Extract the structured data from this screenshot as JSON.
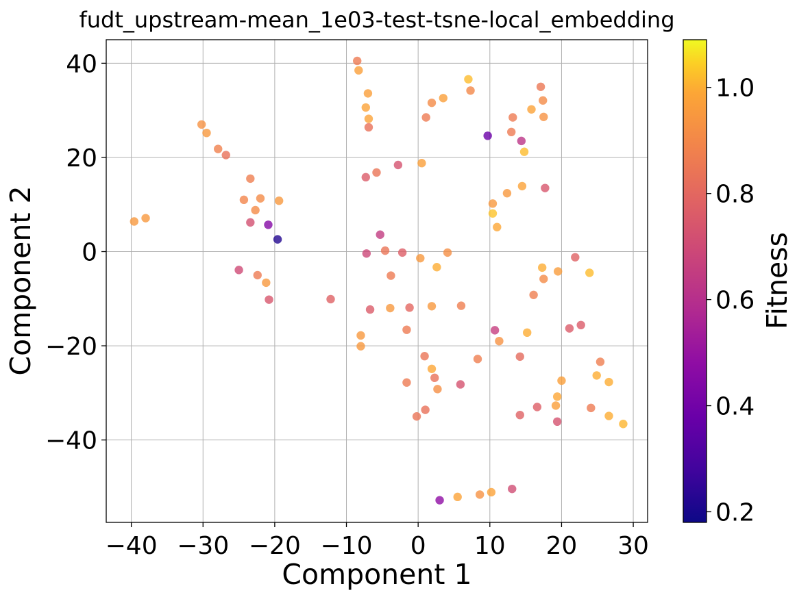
{
  "chart_data": {
    "type": "scatter",
    "title": "fudt_upstream-mean_1e03-test-tsne-local_embedding",
    "xlabel": "Component 1",
    "ylabel": "Component 2",
    "xlim": [
      -43.5,
      32
    ],
    "ylim": [
      -57.5,
      45
    ],
    "xticks": [
      -40,
      -30,
      -20,
      -10,
      0,
      10,
      20,
      30
    ],
    "xtick_labels": [
      "−40",
      "−30",
      "−20",
      "−10",
      "0",
      "10",
      "20",
      "30"
    ],
    "yticks": [
      -40,
      -20,
      0,
      20,
      40
    ],
    "ytick_labels": [
      "−40",
      "−20",
      "0",
      "20",
      "40"
    ],
    "grid": true,
    "colorbar": {
      "label": "Fitness",
      "colormap": "plasma",
      "range": [
        0.18,
        1.09
      ],
      "ticks": [
        0.2,
        0.4,
        0.6,
        0.8,
        1.0
      ],
      "tick_labels": [
        "0.2",
        "0.4",
        "0.6",
        "0.8",
        "1.0"
      ]
    },
    "points": [
      {
        "x": -39.6,
        "y": 6.4,
        "c": 0.95
      },
      {
        "x": -38.0,
        "y": 7.1,
        "c": 0.95
      },
      {
        "x": -30.2,
        "y": 27.0,
        "c": 0.93
      },
      {
        "x": -29.5,
        "y": 25.2,
        "c": 0.95
      },
      {
        "x": -27.9,
        "y": 21.8,
        "c": 0.88
      },
      {
        "x": -26.8,
        "y": 20.5,
        "c": 0.83
      },
      {
        "x": -23.4,
        "y": 15.5,
        "c": 0.87
      },
      {
        "x": -24.3,
        "y": 11.0,
        "c": 0.89
      },
      {
        "x": -22.0,
        "y": 11.3,
        "c": 0.91
      },
      {
        "x": -22.7,
        "y": 8.8,
        "c": 0.91
      },
      {
        "x": -19.4,
        "y": 10.8,
        "c": 0.95
      },
      {
        "x": -23.4,
        "y": 6.2,
        "c": 0.72
      },
      {
        "x": -20.9,
        "y": 5.7,
        "c": 0.45
      },
      {
        "x": -19.6,
        "y": 2.6,
        "c": 0.22
      },
      {
        "x": -25.0,
        "y": -3.9,
        "c": 0.7
      },
      {
        "x": -22.4,
        "y": -5.0,
        "c": 0.86
      },
      {
        "x": -21.2,
        "y": -6.6,
        "c": 0.95
      },
      {
        "x": -20.8,
        "y": -10.2,
        "c": 0.74
      },
      {
        "x": -12.2,
        "y": -10.1,
        "c": 0.78
      },
      {
        "x": -8.5,
        "y": 40.5,
        "c": 0.86
      },
      {
        "x": -8.3,
        "y": 38.5,
        "c": 0.97
      },
      {
        "x": -7.0,
        "y": 33.6,
        "c": 0.97
      },
      {
        "x": -7.3,
        "y": 30.6,
        "c": 0.98
      },
      {
        "x": -6.9,
        "y": 28.2,
        "c": 0.98
      },
      {
        "x": -6.9,
        "y": 26.4,
        "c": 0.83
      },
      {
        "x": -5.8,
        "y": 16.8,
        "c": 0.84
      },
      {
        "x": -7.3,
        "y": 15.8,
        "c": 0.76
      },
      {
        "x": -2.8,
        "y": 18.4,
        "c": 0.73
      },
      {
        "x": -5.3,
        "y": 3.6,
        "c": 0.65
      },
      {
        "x": -7.2,
        "y": -0.4,
        "c": 0.69
      },
      {
        "x": -4.6,
        "y": 0.2,
        "c": 0.84
      },
      {
        "x": -2.2,
        "y": -0.2,
        "c": 0.77
      },
      {
        "x": -3.8,
        "y": -5.1,
        "c": 0.86
      },
      {
        "x": -6.7,
        "y": -12.3,
        "c": 0.76
      },
      {
        "x": -3.9,
        "y": -12.0,
        "c": 0.95
      },
      {
        "x": -1.2,
        "y": -11.9,
        "c": 0.8
      },
      {
        "x": -8.0,
        "y": -17.8,
        "c": 0.95
      },
      {
        "x": -8.0,
        "y": -20.1,
        "c": 0.95
      },
      {
        "x": -1.6,
        "y": -16.6,
        "c": 0.86
      },
      {
        "x": -1.6,
        "y": -27.8,
        "c": 0.86
      },
      {
        "x": -0.2,
        "y": -35.0,
        "c": 0.84
      },
      {
        "x": 1.0,
        "y": -33.6,
        "c": 0.83
      },
      {
        "x": 0.9,
        "y": -22.2,
        "c": 0.84
      },
      {
        "x": 1.9,
        "y": -24.9,
        "c": 0.99
      },
      {
        "x": 2.3,
        "y": -26.8,
        "c": 0.83
      },
      {
        "x": 2.7,
        "y": -29.2,
        "c": 0.92
      },
      {
        "x": 1.9,
        "y": -11.6,
        "c": 0.95
      },
      {
        "x": 6.0,
        "y": -11.5,
        "c": 0.87
      },
      {
        "x": 5.9,
        "y": -28.2,
        "c": 0.73
      },
      {
        "x": 8.3,
        "y": -22.8,
        "c": 0.87
      },
      {
        "x": 0.3,
        "y": -1.4,
        "c": 0.95
      },
      {
        "x": 2.6,
        "y": -3.3,
        "c": 1.0
      },
      {
        "x": 4.1,
        "y": -0.2,
        "c": 0.92
      },
      {
        "x": 0.5,
        "y": 18.8,
        "c": 0.97
      },
      {
        "x": 1.1,
        "y": 28.5,
        "c": 0.86
      },
      {
        "x": 1.9,
        "y": 31.6,
        "c": 0.91
      },
      {
        "x": 3.5,
        "y": 32.6,
        "c": 0.97
      },
      {
        "x": 7.0,
        "y": 36.6,
        "c": 1.02
      },
      {
        "x": 7.3,
        "y": 34.2,
        "c": 0.9
      },
      {
        "x": 9.7,
        "y": 24.6,
        "c": 0.38
      },
      {
        "x": 10.4,
        "y": 10.2,
        "c": 0.95
      },
      {
        "x": 10.4,
        "y": 8.1,
        "c": 1.03
      },
      {
        "x": 11.0,
        "y": 5.2,
        "c": 0.99
      },
      {
        "x": 12.4,
        "y": 12.4,
        "c": 0.95
      },
      {
        "x": 13.0,
        "y": 25.4,
        "c": 0.86
      },
      {
        "x": 13.2,
        "y": 28.5,
        "c": 0.86
      },
      {
        "x": 14.4,
        "y": 23.5,
        "c": 0.62
      },
      {
        "x": 14.8,
        "y": 21.2,
        "c": 1.02
      },
      {
        "x": 15.8,
        "y": 30.2,
        "c": 0.98
      },
      {
        "x": 17.1,
        "y": 35.0,
        "c": 0.85
      },
      {
        "x": 17.4,
        "y": 32.1,
        "c": 0.91
      },
      {
        "x": 17.5,
        "y": 28.6,
        "c": 0.93
      },
      {
        "x": 14.5,
        "y": 13.9,
        "c": 0.98
      },
      {
        "x": 17.7,
        "y": 13.5,
        "c": 0.74
      },
      {
        "x": 10.7,
        "y": -16.7,
        "c": 0.66
      },
      {
        "x": 11.3,
        "y": -19.0,
        "c": 0.93
      },
      {
        "x": 15.2,
        "y": -17.2,
        "c": 1.0
      },
      {
        "x": 14.2,
        "y": -22.3,
        "c": 0.81
      },
      {
        "x": 17.3,
        "y": -3.4,
        "c": 1.0
      },
      {
        "x": 17.5,
        "y": -5.8,
        "c": 0.91
      },
      {
        "x": 19.5,
        "y": -4.2,
        "c": 0.96
      },
      {
        "x": 21.9,
        "y": -1.2,
        "c": 0.78
      },
      {
        "x": 23.9,
        "y": -4.5,
        "c": 1.02
      },
      {
        "x": 16.1,
        "y": -9.2,
        "c": 0.87
      },
      {
        "x": 21.1,
        "y": -16.3,
        "c": 0.76
      },
      {
        "x": 22.7,
        "y": -15.6,
        "c": 0.76
      },
      {
        "x": 19.4,
        "y": -30.8,
        "c": 0.99
      },
      {
        "x": 19.2,
        "y": -32.7,
        "c": 0.97
      },
      {
        "x": 20.0,
        "y": -27.4,
        "c": 0.97
      },
      {
        "x": 16.6,
        "y": -33.0,
        "c": 0.77
      },
      {
        "x": 14.2,
        "y": -34.7,
        "c": 0.78
      },
      {
        "x": 19.4,
        "y": -36.1,
        "c": 0.73
      },
      {
        "x": 24.1,
        "y": -33.2,
        "c": 0.86
      },
      {
        "x": 25.4,
        "y": -23.4,
        "c": 0.87
      },
      {
        "x": 24.9,
        "y": -26.3,
        "c": 1.0
      },
      {
        "x": 26.6,
        "y": -27.7,
        "c": 1.0
      },
      {
        "x": 26.6,
        "y": -34.9,
        "c": 1.0
      },
      {
        "x": 28.6,
        "y": -36.6,
        "c": 1.01
      },
      {
        "x": 3.0,
        "y": -52.8,
        "c": 0.48
      },
      {
        "x": 5.5,
        "y": -52.1,
        "c": 0.98
      },
      {
        "x": 8.6,
        "y": -51.6,
        "c": 0.93
      },
      {
        "x": 10.2,
        "y": -51.1,
        "c": 0.98
      },
      {
        "x": 13.1,
        "y": -50.4,
        "c": 0.71
      }
    ]
  }
}
